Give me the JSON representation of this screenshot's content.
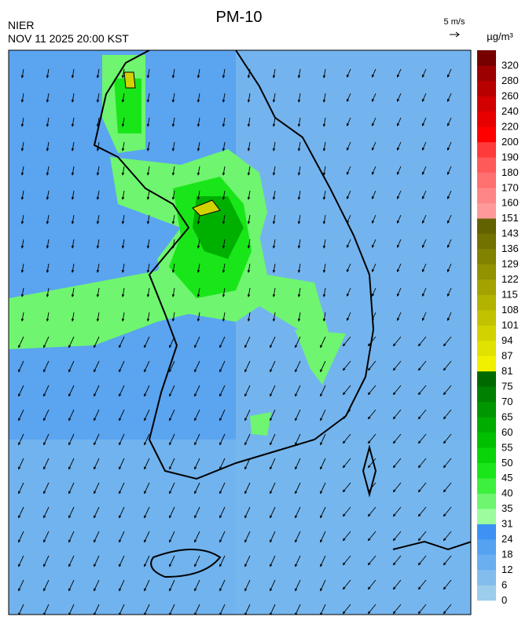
{
  "header": {
    "title": "PM-10",
    "agency": "NIER",
    "datetime": "NOV 11 2025 20:00 KST",
    "wind_scale": "5 m/s",
    "unit": "µg/m³"
  },
  "colorbar": {
    "ticks": [
      0,
      6,
      12,
      18,
      24,
      31,
      35,
      40,
      45,
      50,
      55,
      60,
      65,
      70,
      75,
      81,
      87,
      94,
      101,
      108,
      115,
      122,
      129,
      136,
      143,
      151,
      160,
      170,
      180,
      190,
      200,
      220,
      240,
      260,
      280,
      320
    ],
    "colors": [
      "#9ccdea",
      "#82bdee",
      "#6aaff0",
      "#55a2f1",
      "#3d92f3",
      "#9dfd9d",
      "#6ff56f",
      "#3ef03e",
      "#19e619",
      "#08d408",
      "#00c000",
      "#00ac00",
      "#009600",
      "#008000",
      "#006a00",
      "#f0f000",
      "#e2e200",
      "#d2d200",
      "#c2c200",
      "#b2b200",
      "#a2a200",
      "#929200",
      "#828200",
      "#727200",
      "#626200",
      "#ff9a9a",
      "#ff8686",
      "#ff7070",
      "#ff5a5a",
      "#ff3a3a",
      "#ff0000",
      "#e80000",
      "#d20000",
      "#b80000",
      "#9c0000",
      "#760000"
    ]
  }
}
